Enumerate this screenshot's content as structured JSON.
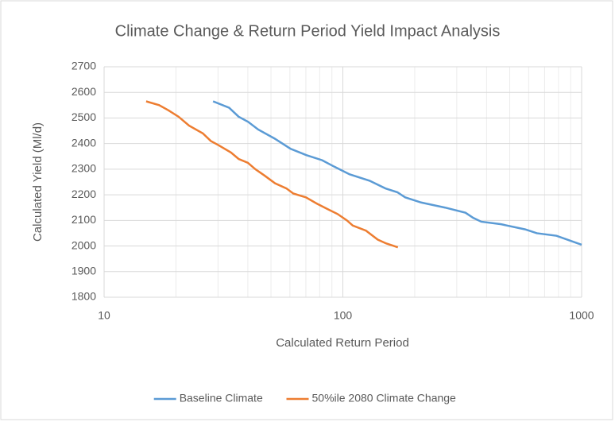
{
  "chart_data": {
    "type": "line",
    "title": "Climate Change & Return Period Yield Impact Analysis",
    "x_label": "Calculated Return Period",
    "y_label": "Calculated Yield (Ml/d)",
    "xscale": "log",
    "xlim": [
      10,
      1000
    ],
    "xticks": [
      10,
      100,
      1000
    ],
    "ylim": [
      1800,
      2700
    ],
    "yticks": [
      1800,
      1900,
      2000,
      2100,
      2200,
      2300,
      2400,
      2500,
      2600,
      2700
    ],
    "grid": true,
    "legend": "bottom",
    "series": [
      {
        "name": "Baseline Climate",
        "color": "#5b9bd5",
        "x": [
          28.6,
          33.4,
          36.6,
          40.1,
          44.2,
          51.7,
          60.3,
          70.3,
          81.9,
          92,
          106.7,
          129.4,
          150.7,
          169.1,
          182.4,
          212.6,
          268.1,
          326.3,
          351.6,
          380,
          460,
          580,
          649,
          785,
          1000
        ],
        "values": [
          2565,
          2540,
          2505,
          2485,
          2455,
          2420,
          2380,
          2355,
          2335,
          2310,
          2280,
          2255,
          2225,
          2210,
          2190,
          2170,
          2150,
          2130,
          2110,
          2095,
          2085,
          2065,
          2050,
          2040,
          2005
        ]
      },
      {
        "name": "50%ile 2080 Climate Change",
        "color": "#ed7d31",
        "x": [
          15,
          17,
          18.6,
          20.5,
          22.7,
          25.9,
          28,
          30,
          34,
          36.6,
          40,
          43,
          47,
          52,
          58,
          62,
          70,
          78,
          86,
          95,
          104,
          110,
          125,
          140,
          152,
          170
        ],
        "values": [
          2565,
          2550,
          2530,
          2505,
          2470,
          2440,
          2410,
          2395,
          2365,
          2340,
          2325,
          2300,
          2275,
          2245,
          2225,
          2205,
          2190,
          2165,
          2145,
          2125,
          2100,
          2080,
          2060,
          2025,
          2010,
          1995
        ]
      }
    ]
  }
}
